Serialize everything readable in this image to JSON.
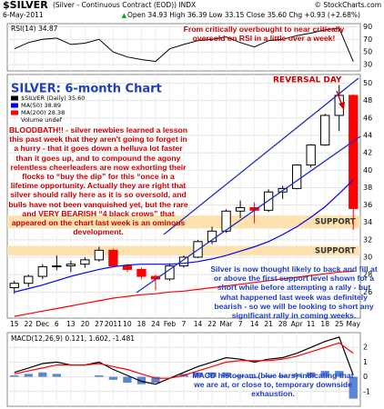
{
  "header": {
    "symbol": "$SILVER",
    "description": "(Silver - Continuous Contract (EOD)) INDX",
    "source": "© StockCharts.com",
    "date": "6-May-2011",
    "quote": "Open 34.93  High 36.39  Low 33.15  Close 35.60  Chg +0.93 (+2.68%)"
  },
  "chart_data": [
    {
      "type": "candlestick",
      "title": "SILVER: 6-month Chart",
      "categories": [
        "15",
        "22",
        "Dec",
        "6",
        "13",
        "20",
        "27",
        "2011",
        "10",
        "18",
        "24",
        "Feb",
        "7",
        "14",
        "22",
        "Mar",
        "7",
        "14",
        "21",
        "28",
        "Apr",
        "11",
        "18",
        "25",
        "May"
      ],
      "series": [
        {
          "name": "$SILVER (Daily) 35.60",
          "color": "#000000",
          "down_color": "#ff0000",
          "open": [
            26.5,
            27.0,
            27.8,
            28.9,
            29.0,
            29.2,
            29.7,
            30.8,
            29.0,
            28.6,
            27.8,
            27.5,
            29.0,
            30.0,
            31.8,
            33.0,
            35.3,
            35.7,
            35.4,
            37.5,
            37.9,
            40.6,
            42.9,
            46.3,
            48.6
          ],
          "high": [
            27.3,
            28.0,
            29.2,
            30.2,
            29.6,
            30.0,
            31.2,
            31.0,
            29.2,
            28.8,
            28.0,
            29.3,
            30.2,
            32.0,
            33.5,
            35.5,
            36.5,
            36.3,
            37.8,
            38.2,
            40.7,
            43.0,
            46.5,
            49.8,
            48.7
          ],
          "low": [
            25.8,
            26.6,
            27.5,
            28.5,
            28.3,
            28.8,
            29.5,
            28.8,
            28.3,
            27.5,
            26.2,
            27.3,
            28.8,
            29.9,
            31.5,
            32.8,
            34.5,
            33.9,
            35.2,
            36.7,
            37.8,
            40.3,
            42.8,
            44.5,
            33.15
          ],
          "close": [
            27.0,
            27.8,
            28.9,
            29.0,
            29.2,
            29.7,
            30.8,
            29.0,
            28.6,
            27.8,
            27.5,
            29.0,
            30.0,
            31.8,
            33.0,
            35.3,
            35.7,
            35.4,
            37.5,
            37.9,
            40.6,
            42.9,
            46.3,
            48.6,
            35.6
          ]
        },
        {
          "name": "MA(50) 38.89",
          "color": "#0000ff",
          "values": [
            26.0,
            26.4,
            26.8,
            27.3,
            27.8,
            28.2,
            28.6,
            28.9,
            29.1,
            29.2,
            29.2,
            29.2,
            29.3,
            29.5,
            29.8,
            30.2,
            30.7,
            31.2,
            31.8,
            32.6,
            33.5,
            34.6,
            35.8,
            37.3,
            38.89
          ]
        },
        {
          "name": "MA(200) 28.38",
          "color": "#ff0000",
          "values": [
            23.2,
            23.5,
            23.8,
            24.1,
            24.4,
            24.7,
            25.0,
            25.3,
            25.5,
            25.7,
            25.8,
            26.0,
            26.1,
            26.3,
            26.5,
            26.7,
            26.9,
            27.1,
            27.3,
            27.5,
            27.7,
            27.9,
            28.1,
            28.3,
            28.38
          ]
        }
      ],
      "legend_extra": "Volume undef",
      "ylim": [
        23,
        51
      ],
      "yticks": [
        26,
        28,
        30,
        32,
        34,
        36,
        38,
        40,
        42,
        44,
        46,
        48,
        50
      ],
      "grid": true,
      "support_zones": [
        {
          "label": "SUPPORT",
          "low": 33.3,
          "high": 34.8,
          "color": "#fde2b0"
        },
        {
          "label": "SUPPORT",
          "low": 30.2,
          "high": 31.3,
          "color": "#fde2b0"
        }
      ],
      "annotations": [
        {
          "text": "REVERSAL DAY",
          "color": "#cc0000"
        },
        {
          "text": "BLOODBATH!! - silver newbies learned a lesson this past week that they aren't going to forget in a hurry - that it goes down a helluva lot faster than it goes up, and to compound the agony relentless cheerleaders are now exhorting their flocks to “buy the dip” for this “once in a lifetime opportunity. Actually they are right that silver should rally here as it is so oversold, and bulls have not been vanquished yet, but the rare and VERY BEARISH “4 black crows” that appeared on the chart last week is an ominous development.",
          "color": "#cc0000"
        },
        {
          "text": "Silver is now thought likely to back and fill at or above the first support level shown for a short while before attempting a rally - but what happened last week was definitely bearish - so we will be looking to short any significant rally in coming weeks.",
          "color": "#1f3fbf"
        }
      ]
    },
    {
      "type": "line",
      "title": "RSI(14) 34.87",
      "series": [
        {
          "name": "RSI(14)",
          "color": "#000000",
          "values": [
            55,
            65,
            70,
            72,
            62,
            64,
            70,
            50,
            42,
            38,
            35,
            55,
            62,
            68,
            70,
            74,
            65,
            58,
            68,
            70,
            76,
            80,
            85,
            88,
            34.87
          ]
        }
      ],
      "ylim": [
        20,
        95
      ],
      "yticks": [
        30,
        50,
        70,
        90
      ],
      "grid": true,
      "annotations": [
        {
          "text": "From critically overbought to near critically oversold on RSI in a little over a week!",
          "color": "#cc0000"
        }
      ]
    },
    {
      "type": "macd",
      "title": "MACD(12,26,9) 0.121, 1.602, -1.481",
      "series": [
        {
          "name": "MACD",
          "color": "#000000",
          "values": [
            0.3,
            0.6,
            0.9,
            1.0,
            0.8,
            0.8,
            1.0,
            0.5,
            0.1,
            -0.3,
            -0.5,
            -0.1,
            0.3,
            0.7,
            1.0,
            1.3,
            1.2,
            1.0,
            1.2,
            1.3,
            1.6,
            2.0,
            2.4,
            2.7,
            0.121
          ]
        },
        {
          "name": "Signal",
          "color": "#ff0000",
          "values": [
            0.2,
            0.4,
            0.6,
            0.8,
            0.8,
            0.8,
            0.9,
            0.7,
            0.5,
            0.2,
            -0.1,
            -0.1,
            0.1,
            0.4,
            0.7,
            1.0,
            1.1,
            1.1,
            1.1,
            1.2,
            1.4,
            1.7,
            2.0,
            2.3,
            1.602
          ]
        },
        {
          "name": "Histogram",
          "color": "#5b86d6",
          "values": [
            0.1,
            0.2,
            0.3,
            0.2,
            0,
            0,
            0.1,
            -0.2,
            -0.4,
            -0.5,
            -0.4,
            0,
            0.2,
            0.3,
            0.3,
            0.3,
            0.1,
            -0.1,
            0.1,
            0.1,
            0.2,
            0.3,
            0.4,
            0.4,
            -1.481
          ]
        }
      ],
      "ylim": [
        -2,
        3
      ],
      "yticks": [
        -1,
        0,
        1,
        2
      ],
      "grid": true,
      "annotations": [
        {
          "text": "MACD histogram (blue bars) indicating that we are at, or close to, temporary downside exhaustion.",
          "color": "#1f3fbf"
        }
      ]
    }
  ]
}
